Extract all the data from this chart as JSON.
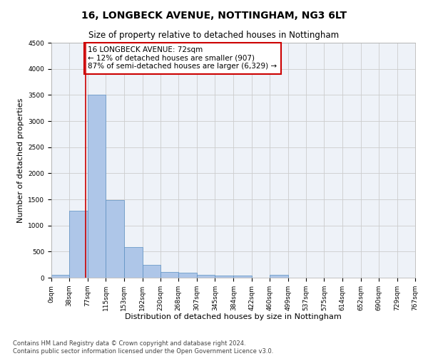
{
  "title": "16, LONGBECK AVENUE, NOTTINGHAM, NG3 6LT",
  "subtitle": "Size of property relative to detached houses in Nottingham",
  "xlabel": "Distribution of detached houses by size in Nottingham",
  "ylabel": "Number of detached properties",
  "bar_values": [
    50,
    1280,
    3500,
    1480,
    580,
    240,
    115,
    90,
    60,
    40,
    40,
    0,
    50,
    0,
    0,
    0,
    0,
    0,
    0,
    0
  ],
  "bin_edges": [
    0,
    38,
    77,
    115,
    153,
    192,
    230,
    268,
    307,
    345,
    384,
    422,
    460,
    499,
    537,
    575,
    614,
    652,
    690,
    729,
    767
  ],
  "x_tick_labels": [
    "0sqm",
    "38sqm",
    "77sqm",
    "115sqm",
    "153sqm",
    "192sqm",
    "230sqm",
    "268sqm",
    "307sqm",
    "345sqm",
    "384sqm",
    "422sqm",
    "460sqm",
    "499sqm",
    "537sqm",
    "575sqm",
    "614sqm",
    "652sqm",
    "690sqm",
    "729sqm",
    "767sqm"
  ],
  "bar_color": "#aec6e8",
  "bar_edge_color": "#5a8fc2",
  "bar_edge_width": 0.5,
  "vline_x": 72,
  "vline_color": "#cc0000",
  "ylim": [
    0,
    4500
  ],
  "yticks": [
    0,
    500,
    1000,
    1500,
    2000,
    2500,
    3000,
    3500,
    4000,
    4500
  ],
  "grid_color": "#cccccc",
  "background_color": "#eef2f8",
  "annotation_text": "16 LONGBECK AVENUE: 72sqm\n← 12% of detached houses are smaller (907)\n87% of semi-detached houses are larger (6,329) →",
  "annotation_box_color": "#ffffff",
  "annotation_box_edge_color": "#cc0000",
  "footer_line1": "Contains HM Land Registry data © Crown copyright and database right 2024.",
  "footer_line2": "Contains public sector information licensed under the Open Government Licence v3.0.",
  "title_fontsize": 10,
  "subtitle_fontsize": 8.5,
  "ylabel_fontsize": 8,
  "xlabel_fontsize": 8,
  "tick_fontsize": 6.5,
  "annotation_fontsize": 7.5,
  "footer_fontsize": 6
}
